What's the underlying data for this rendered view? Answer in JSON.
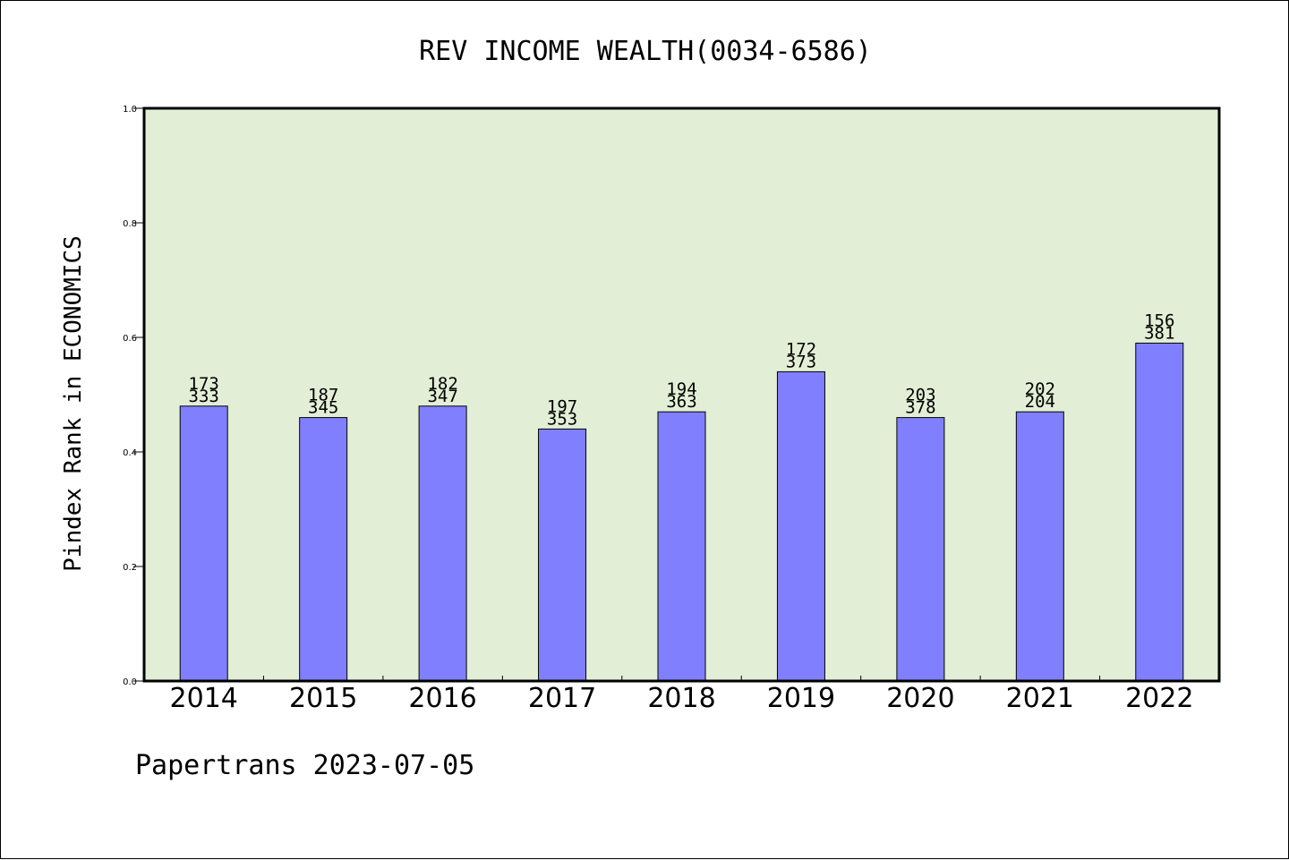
{
  "chart_data": {
    "type": "bar",
    "title": "REV INCOME WEALTH(0034-6586)",
    "ylabel": "Pindex Rank in ECONOMICS",
    "xlabel": "",
    "categories": [
      "2014",
      "2015",
      "2016",
      "2017",
      "2018",
      "2019",
      "2020",
      "2021",
      "2022"
    ],
    "values": [
      0.48,
      0.46,
      0.48,
      0.44,
      0.47,
      0.54,
      0.46,
      0.47,
      0.59
    ],
    "bar_labels_top": [
      "173",
      "187",
      "182",
      "197",
      "194",
      "172",
      "203",
      "202",
      "156"
    ],
    "bar_labels_bottom": [
      "333",
      "345",
      "347",
      "353",
      "363",
      "373",
      "378",
      "204",
      "381"
    ],
    "ylim": [
      0,
      1.0
    ],
    "yticks": [
      "0.0",
      "0.2",
      "0.4",
      "0.6",
      "0.8",
      "1.0"
    ],
    "grid": false,
    "colors": {
      "plot_background": "#e2efd6",
      "bar": "#8080ff",
      "bar_edge": "#000000"
    }
  },
  "footer": "Papertrans 2023-07-05"
}
